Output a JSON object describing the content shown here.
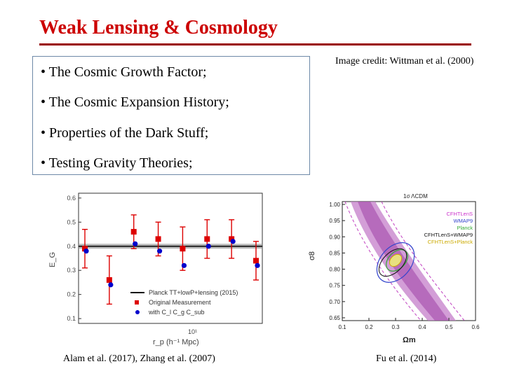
{
  "slide": {
    "title": "Weak Lensing & Cosmology",
    "bullets": [
      "• The Cosmic Growth Factor;",
      "• The Cosmic Expansion History;",
      "• Properties of the Dark Stuff;",
      "• Testing Gravity Theories;"
    ],
    "image_credit": "Image credit: Wittman et al. (2000)",
    "left_caption": "Alam et al. (2017), Zhang et al. (2007)",
    "right_caption": "Fu et al. (2014)"
  },
  "colors": {
    "title": "#cc0000",
    "rule": "#990000",
    "box_border": "#6d89a8",
    "red_points": "#dd0000",
    "blue_points": "#0000cc",
    "contour": "#c040c0"
  },
  "chart_data": [
    {
      "type": "scatter",
      "ylabel": "E_G",
      "xlabel": "r_p (h⁻¹ Mpc)",
      "xscale": "log",
      "y_ticks": [
        "0.1",
        "0.2",
        "0.3",
        "0.4",
        "0.5",
        "0.6"
      ],
      "x_tick_label": "10¹",
      "ylim": [
        0.08,
        0.62
      ],
      "planck_band": {
        "value": 0.4,
        "half_width": 0.01
      },
      "series": [
        {
          "name": "Original Measurement",
          "color": "#dd0000",
          "values": [
            0.39,
            0.26,
            0.46,
            0.43,
            0.39,
            0.43,
            0.43,
            0.34
          ],
          "errors": [
            0.08,
            0.1,
            0.07,
            0.07,
            0.09,
            0.08,
            0.08,
            0.08
          ]
        },
        {
          "name": "with C_l C_g C_sub",
          "color": "#0000cc",
          "values": [
            0.38,
            0.24,
            0.41,
            0.38,
            0.32,
            0.4,
            0.42,
            0.32
          ]
        }
      ],
      "legend": [
        "Planck TT+lowP+lensing (2015)",
        "Original Measurement",
        "with C_l C_g C_sub"
      ]
    },
    {
      "type": "contour",
      "title": "1σ ΛCDM",
      "xlabel": "Ωm",
      "ylabel": "σ8",
      "x_ticks": [
        "0.1",
        "0.2",
        "0.3",
        "0.4",
        "0.5",
        "0.6"
      ],
      "y_ticks": [
        "1.00",
        "0.95",
        "0.90",
        "0.85",
        "0.80",
        "0.75",
        "0.70",
        "0.65"
      ],
      "legend": [
        {
          "name": "CFHTLenS",
          "color": "#cc33cc"
        },
        {
          "name": "WMAP9",
          "color": "#3344cc"
        },
        {
          "name": "Planck",
          "color": "#33aa33"
        },
        {
          "name": "CFHTLenS+WMAP9",
          "color": "#111111"
        },
        {
          "name": "CFHTLenS+Planck",
          "color": "#ccaa00"
        }
      ]
    }
  ]
}
